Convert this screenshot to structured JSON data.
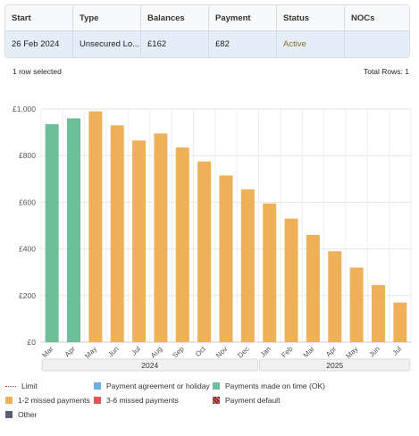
{
  "table": {
    "headers": [
      "Start",
      "Type",
      "Balances",
      "Payment",
      "Status",
      "NOCs"
    ],
    "row": {
      "start": "26 Feb 2024",
      "type": "Unsecured Lo...",
      "balance": "£162",
      "payment": "£82",
      "status": "Active",
      "nocs": ""
    },
    "selected_text": "1 row selected",
    "total_rows": "Total Rows: 1"
  },
  "colors": {
    "ok": "#6cbf98",
    "missed_1_2": "#eeb15a",
    "agreement": "#6aaee6",
    "missed_3_6": "#e8505b",
    "default": "#8b2b2b",
    "other": "#5a5f73"
  },
  "chart_data": {
    "type": "bar",
    "ylim": [
      0,
      1000
    ],
    "yticks": [
      "£0",
      "£200",
      "£400",
      "£600",
      "£800",
      "£1,000"
    ],
    "categories": [
      "Mar",
      "Apr",
      "May",
      "Jun",
      "Jul",
      "Aug",
      "Sep",
      "Oct",
      "Nov",
      "Dec",
      "Jan",
      "Feb",
      "Mar",
      "Apr",
      "May",
      "Jun",
      "Jul"
    ],
    "values": [
      935,
      960,
      990,
      930,
      865,
      895,
      835,
      775,
      715,
      655,
      595,
      530,
      460,
      390,
      320,
      245,
      170
    ],
    "status": [
      "ok",
      "ok",
      "missed_1_2",
      "missed_1_2",
      "missed_1_2",
      "missed_1_2",
      "missed_1_2",
      "missed_1_2",
      "missed_1_2",
      "missed_1_2",
      "missed_1_2",
      "missed_1_2",
      "missed_1_2",
      "missed_1_2",
      "missed_1_2",
      "missed_1_2",
      "missed_1_2"
    ],
    "year_groups": [
      {
        "label": "2024",
        "count": 10
      },
      {
        "label": "2025",
        "count": 7
      }
    ],
    "grid": true
  },
  "legend": {
    "limit": "Limit",
    "agreement": "Payment agreement or holiday",
    "ok": "Payments made on time (OK)",
    "missed_1_2": "1-2 missed payments",
    "missed_3_6": "3-6 missed payments",
    "default": "Payment default",
    "other": "Other"
  }
}
